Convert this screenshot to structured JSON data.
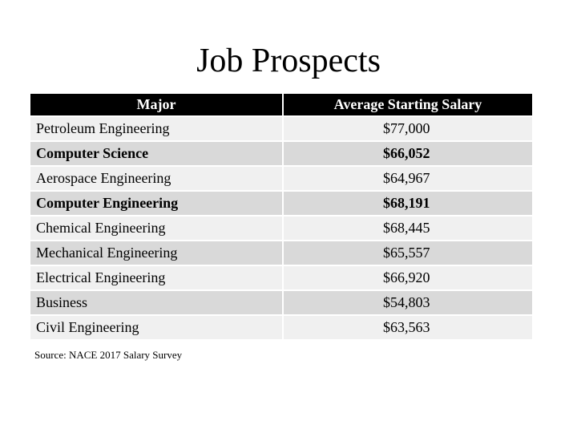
{
  "title": "Job Prospects",
  "table": {
    "header": [
      "Major",
      "Average Starting Salary"
    ],
    "rows": [
      [
        "Petroleum Engineering",
        "$77,000"
      ],
      [
        "Computer Science",
        "$66,052"
      ],
      [
        "Aerospace Engineering",
        "$64,967"
      ],
      [
        "Computer Engineering",
        "$68,191"
      ],
      [
        "Chemical Engineering",
        "$68,445"
      ],
      [
        "Mechanical Engineering",
        "$65,557"
      ],
      [
        "Electrical Engineering",
        "$66,920"
      ],
      [
        "Business",
        "$54,803"
      ],
      [
        "Civil Engineering",
        "$63,563"
      ]
    ]
  },
  "source": "Source: NACE 2017 Salary Survey"
}
